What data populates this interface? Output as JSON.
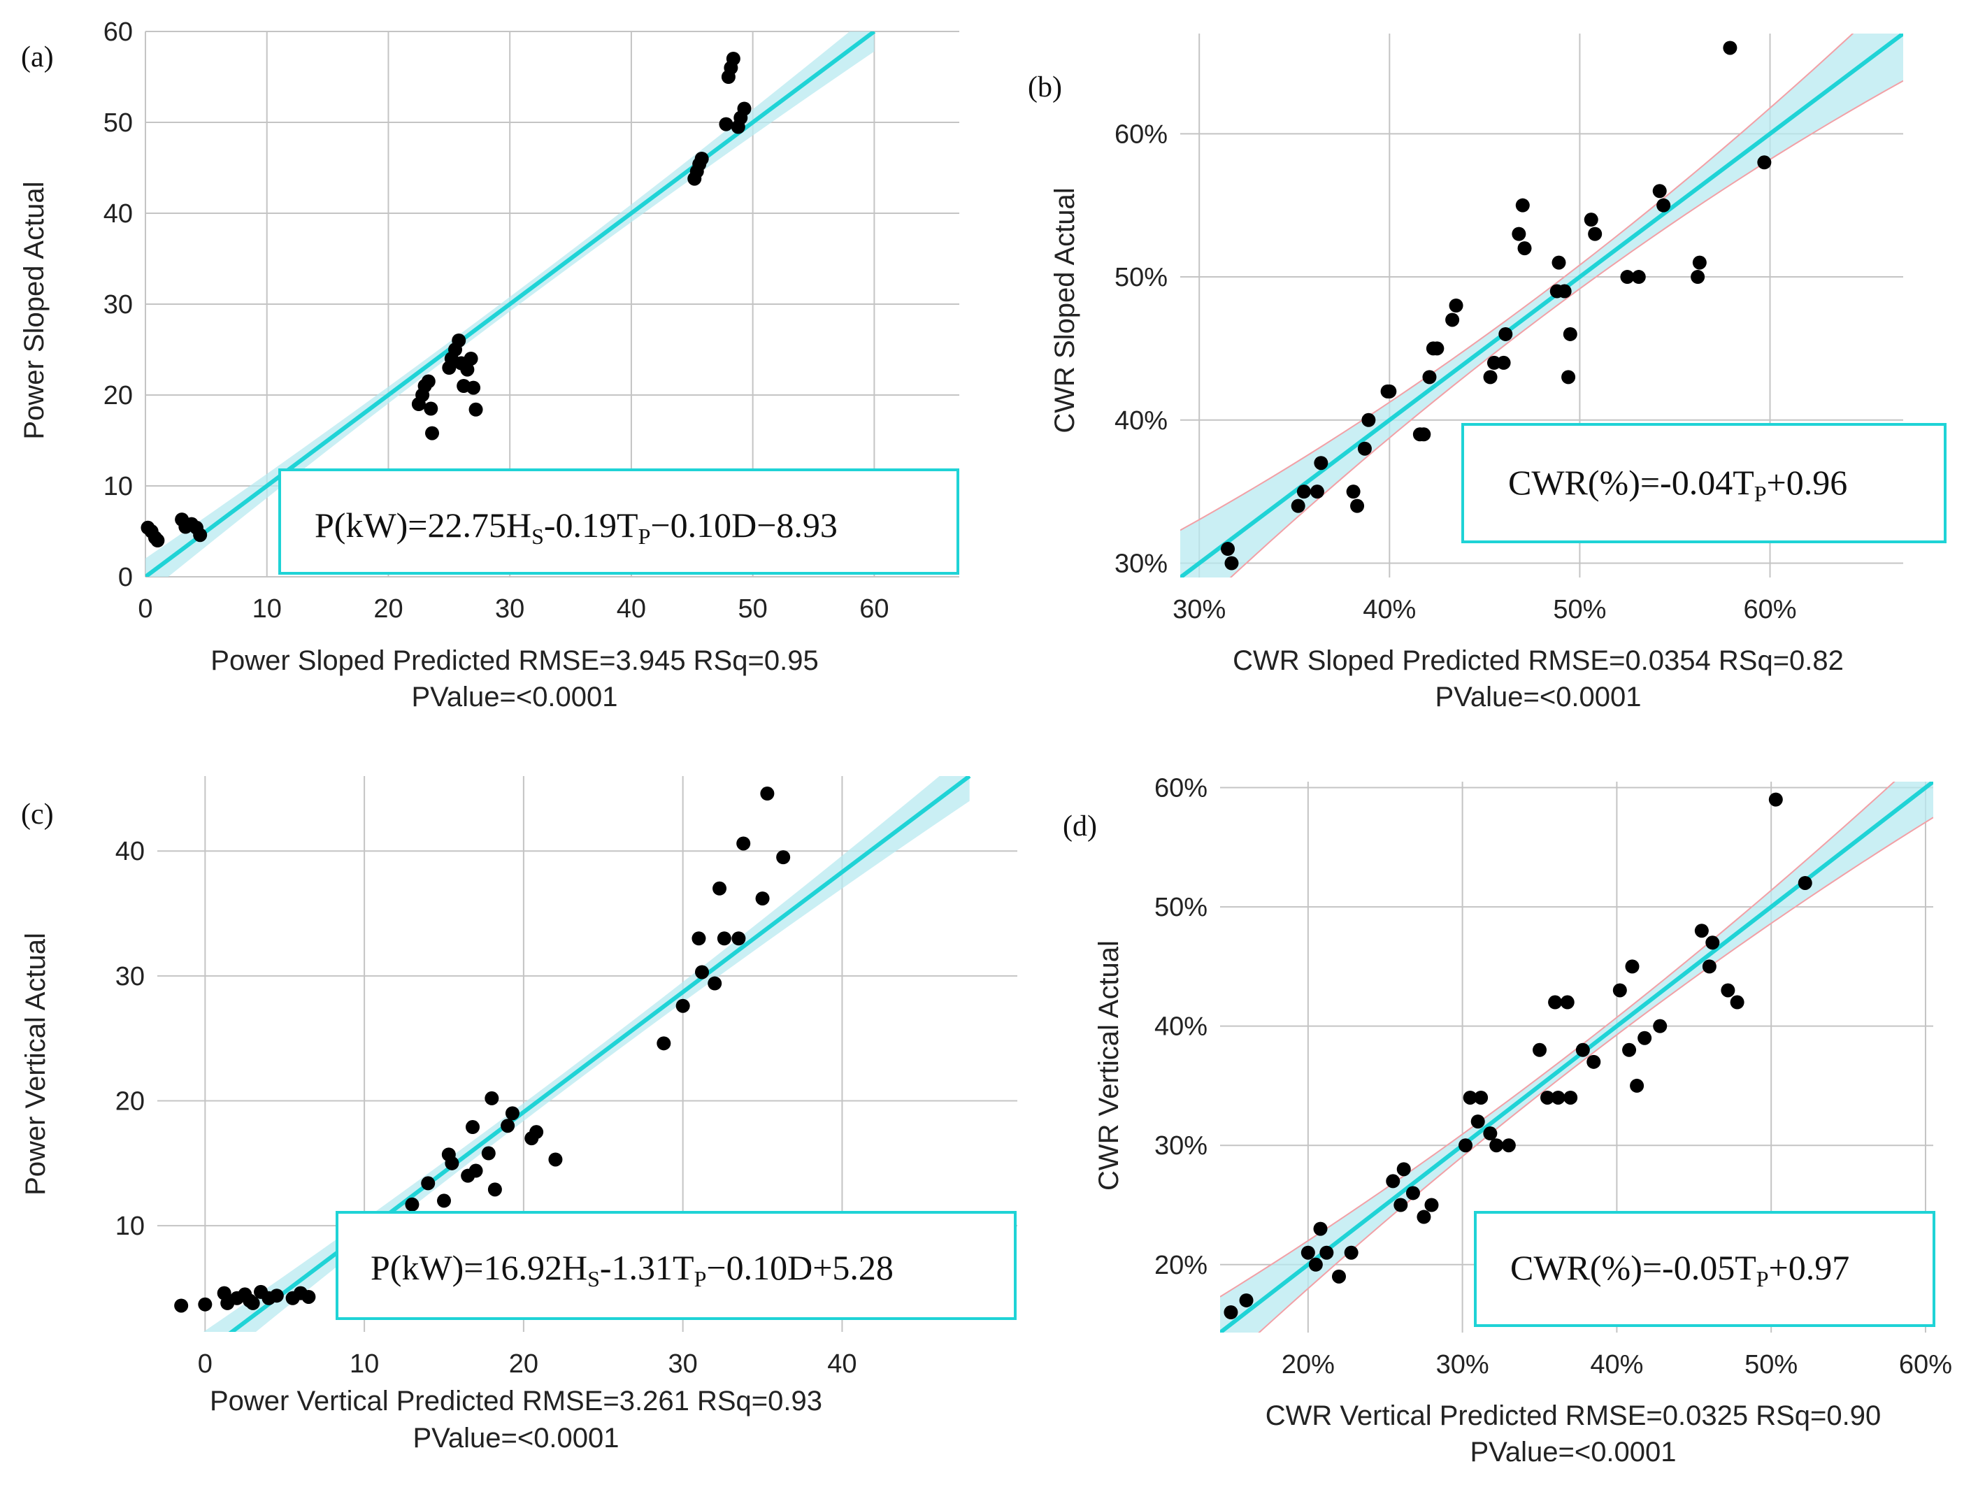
{
  "chart_data": [
    {
      "id": "a",
      "panel_label": "(a)",
      "type": "scatter",
      "xlabel": "Power Sloped Predicted RMSE=3.945 RSq=0.95",
      "xlabel2": "PValue=<0.0001",
      "ylabel": "Power Sloped Actual",
      "xlim": [
        0,
        67
      ],
      "ylim": [
        0,
        60
      ],
      "xticks": [
        0,
        10,
        20,
        30,
        40,
        50,
        60
      ],
      "yticks": [
        0,
        10,
        20,
        30,
        40,
        50,
        60
      ],
      "tick_format": "number",
      "fit": {
        "x0": -2,
        "y0": -2,
        "x1": 60,
        "y1": 60
      },
      "band_halfwidth": [
        2.2,
        0.8,
        2.2
      ],
      "band_edges": false,
      "equation": {
        "main": "P(kW)=22.75H",
        "sub1": "S",
        "mid": "-0.19T",
        "sub2": "P",
        "tail": "−0.10D−8.93"
      },
      "points": [
        [
          0.2,
          5.4
        ],
        [
          0.5,
          5.0
        ],
        [
          0.8,
          4.3
        ],
        [
          1.0,
          4.0
        ],
        [
          3.0,
          6.3
        ],
        [
          3.3,
          5.5
        ],
        [
          3.8,
          5.8
        ],
        [
          4.2,
          5.4
        ],
        [
          4.5,
          4.6
        ],
        [
          22.5,
          19.0
        ],
        [
          22.8,
          20.0
        ],
        [
          23.0,
          21.0
        ],
        [
          23.3,
          21.5
        ],
        [
          23.5,
          18.5
        ],
        [
          23.6,
          15.8
        ],
        [
          25.0,
          23.0
        ],
        [
          25.2,
          24.0
        ],
        [
          25.5,
          25.0
        ],
        [
          25.8,
          26.0
        ],
        [
          26.0,
          23.5
        ],
        [
          26.2,
          21.0
        ],
        [
          26.5,
          22.8
        ],
        [
          26.8,
          24.0
        ],
        [
          27.0,
          20.8
        ],
        [
          27.2,
          18.4
        ],
        [
          45.2,
          43.8
        ],
        [
          45.4,
          44.6
        ],
        [
          45.6,
          45.4
        ],
        [
          45.8,
          46.0
        ],
        [
          47.8,
          49.8
        ],
        [
          48.0,
          55.0
        ],
        [
          48.2,
          56.0
        ],
        [
          48.4,
          57.0
        ],
        [
          48.8,
          49.5
        ],
        [
          49.0,
          50.5
        ],
        [
          49.3,
          51.5
        ]
      ]
    },
    {
      "id": "b",
      "panel_label": "(b)",
      "type": "scatter",
      "xlabel": "CWR Sloped Predicted RMSE=0.0354 RSq=0.82",
      "xlabel2": "PValue=<0.0001",
      "ylabel": "CWR Sloped Actual",
      "xlim": [
        0.29,
        0.67
      ],
      "ylim": [
        0.29,
        0.67
      ],
      "xticks": [
        0.3,
        0.4,
        0.5,
        0.6
      ],
      "yticks": [
        0.3,
        0.4,
        0.5,
        0.6
      ],
      "tick_format": "percent",
      "fit": {
        "x0": 0.29,
        "y0": 0.29,
        "x1": 0.67,
        "y1": 0.67
      },
      "band_halfwidth": [
        0.033,
        0.008,
        0.033
      ],
      "band_edges": true,
      "equation": {
        "main": "CWR(%)=-0.04T",
        "sub1": "",
        "mid": "",
        "sub2": "P",
        "tail": "+0.96"
      },
      "points": [
        [
          0.315,
          0.31
        ],
        [
          0.317,
          0.3
        ],
        [
          0.352,
          0.34
        ],
        [
          0.355,
          0.35
        ],
        [
          0.362,
          0.35
        ],
        [
          0.364,
          0.37
        ],
        [
          0.381,
          0.35
        ],
        [
          0.383,
          0.34
        ],
        [
          0.387,
          0.38
        ],
        [
          0.389,
          0.4
        ],
        [
          0.399,
          0.42
        ],
        [
          0.4,
          0.42
        ],
        [
          0.416,
          0.39
        ],
        [
          0.418,
          0.39
        ],
        [
          0.421,
          0.43
        ],
        [
          0.423,
          0.45
        ],
        [
          0.425,
          0.45
        ],
        [
          0.433,
          0.47
        ],
        [
          0.435,
          0.48
        ],
        [
          0.453,
          0.43
        ],
        [
          0.455,
          0.44
        ],
        [
          0.46,
          0.44
        ],
        [
          0.461,
          0.46
        ],
        [
          0.468,
          0.53
        ],
        [
          0.47,
          0.55
        ],
        [
          0.471,
          0.52
        ],
        [
          0.488,
          0.49
        ],
        [
          0.489,
          0.51
        ],
        [
          0.492,
          0.49
        ],
        [
          0.494,
          0.43
        ],
        [
          0.495,
          0.46
        ],
        [
          0.506,
          0.54
        ],
        [
          0.508,
          0.53
        ],
        [
          0.525,
          0.5
        ],
        [
          0.531,
          0.5
        ],
        [
          0.542,
          0.56
        ],
        [
          0.544,
          0.55
        ],
        [
          0.562,
          0.5
        ],
        [
          0.563,
          0.51
        ],
        [
          0.579,
          0.66
        ],
        [
          0.597,
          0.58
        ]
      ]
    },
    {
      "id": "c",
      "panel_label": "(c)",
      "type": "scatter",
      "xlabel": "Power Vertical Predicted RMSE=3.261 RSq=0.93",
      "xlabel2": "PValue=<0.0001",
      "ylabel": "Power Vertical Actual",
      "xlim": [
        -3,
        51
      ],
      "ylim": [
        1.5,
        46
      ],
      "xticks": [
        0,
        10,
        20,
        30,
        40
      ],
      "yticks": [
        10,
        20,
        30,
        40
      ],
      "tick_format": "number",
      "fit": {
        "x0": -3,
        "y0": -3,
        "x1": 48,
        "y1": 46
      },
      "band_halfwidth": [
        2.0,
        0.7,
        2.0
      ],
      "band_edges": false,
      "equation": {
        "main": "P(kW)=16.92H",
        "sub1": "S",
        "mid": "-1.31T",
        "sub2": "P",
        "tail": "−0.10D+5.28"
      },
      "points": [
        [
          -1.5,
          3.6
        ],
        [
          0.0,
          3.7
        ],
        [
          1.2,
          4.6
        ],
        [
          1.4,
          3.8
        ],
        [
          2.0,
          4.2
        ],
        [
          2.5,
          4.5
        ],
        [
          2.8,
          4.0
        ],
        [
          3.0,
          3.8
        ],
        [
          3.5,
          4.7
        ],
        [
          4.0,
          4.2
        ],
        [
          4.5,
          4.4
        ],
        [
          5.5,
          4.2
        ],
        [
          6.0,
          4.6
        ],
        [
          6.5,
          4.3
        ],
        [
          13.0,
          11.7
        ],
        [
          14.0,
          13.4
        ],
        [
          15.0,
          12.0
        ],
        [
          15.3,
          15.7
        ],
        [
          15.5,
          15.0
        ],
        [
          16.5,
          14.0
        ],
        [
          16.8,
          17.9
        ],
        [
          17.0,
          14.4
        ],
        [
          17.8,
          15.8
        ],
        [
          18.0,
          20.2
        ],
        [
          18.2,
          12.9
        ],
        [
          19.0,
          18.0
        ],
        [
          19.3,
          19.0
        ],
        [
          20.5,
          17.0
        ],
        [
          20.8,
          17.5
        ],
        [
          22.0,
          15.3
        ],
        [
          28.8,
          24.6
        ],
        [
          30.0,
          27.6
        ],
        [
          31.0,
          33.0
        ],
        [
          31.2,
          30.3
        ],
        [
          32.0,
          29.4
        ],
        [
          32.3,
          37.0
        ],
        [
          32.6,
          33.0
        ],
        [
          33.5,
          33.0
        ],
        [
          33.8,
          40.6
        ],
        [
          35.0,
          36.2
        ],
        [
          35.3,
          44.6
        ],
        [
          36.3,
          39.5
        ]
      ]
    },
    {
      "id": "d",
      "panel_label": "(d)",
      "type": "scatter",
      "xlabel": "CWR Vertical Predicted RMSE=0.0325 RSq=0.90",
      "xlabel2": "PValue=<0.0001",
      "ylabel": "CWR Vertical Actual",
      "xlim": [
        0.143,
        0.605
      ],
      "ylim": [
        0.143,
        0.605
      ],
      "xticks": [
        0.2,
        0.3,
        0.4,
        0.5,
        0.6
      ],
      "yticks": [
        0.2,
        0.3,
        0.4,
        0.5,
        0.6
      ],
      "tick_format": "percent",
      "fit": {
        "x0": 0.143,
        "y0": 0.143,
        "x1": 0.605,
        "y1": 0.605
      },
      "band_halfwidth": [
        0.03,
        0.007,
        0.03
      ],
      "band_edges": true,
      "equation": {
        "main": "CWR(%)=-0.05T",
        "sub1": "",
        "mid": "",
        "sub2": "P",
        "tail": "+0.97"
      },
      "points": [
        [
          0.15,
          0.16
        ],
        [
          0.16,
          0.17
        ],
        [
          0.2,
          0.21
        ],
        [
          0.205,
          0.2
        ],
        [
          0.208,
          0.23
        ],
        [
          0.212,
          0.21
        ],
        [
          0.22,
          0.19
        ],
        [
          0.228,
          0.21
        ],
        [
          0.255,
          0.27
        ],
        [
          0.26,
          0.25
        ],
        [
          0.262,
          0.28
        ],
        [
          0.268,
          0.26
        ],
        [
          0.275,
          0.24
        ],
        [
          0.28,
          0.25
        ],
        [
          0.302,
          0.3
        ],
        [
          0.305,
          0.34
        ],
        [
          0.31,
          0.32
        ],
        [
          0.312,
          0.34
        ],
        [
          0.318,
          0.31
        ],
        [
          0.322,
          0.3
        ],
        [
          0.33,
          0.3
        ],
        [
          0.35,
          0.38
        ],
        [
          0.355,
          0.34
        ],
        [
          0.36,
          0.42
        ],
        [
          0.362,
          0.34
        ],
        [
          0.368,
          0.42
        ],
        [
          0.37,
          0.34
        ],
        [
          0.378,
          0.38
        ],
        [
          0.385,
          0.37
        ],
        [
          0.402,
          0.43
        ],
        [
          0.408,
          0.38
        ],
        [
          0.41,
          0.45
        ],
        [
          0.413,
          0.35
        ],
        [
          0.418,
          0.39
        ],
        [
          0.428,
          0.4
        ],
        [
          0.455,
          0.48
        ],
        [
          0.46,
          0.45
        ],
        [
          0.462,
          0.47
        ],
        [
          0.472,
          0.43
        ],
        [
          0.478,
          0.42
        ],
        [
          0.503,
          0.59
        ],
        [
          0.522,
          0.52
        ]
      ]
    }
  ]
}
